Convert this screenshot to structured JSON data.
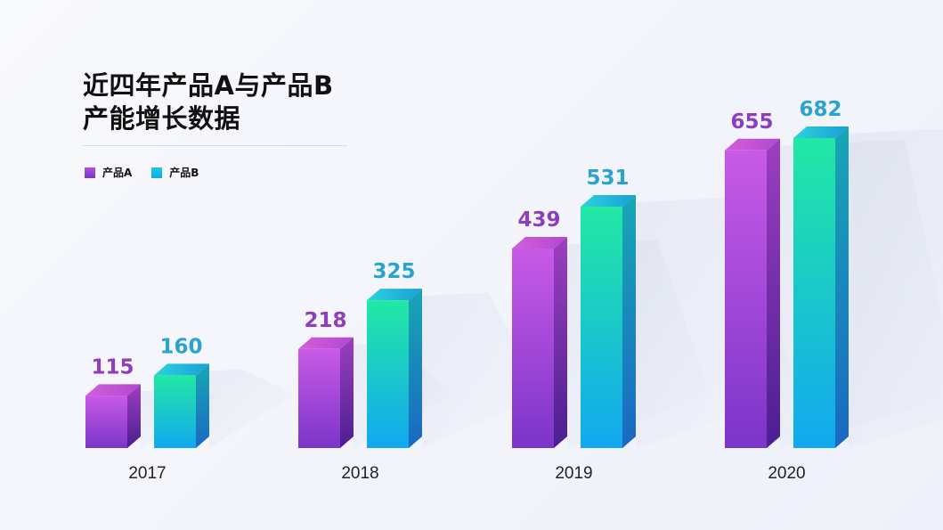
{
  "title_line1": "近四年产品A与产品B",
  "title_line2": "产能增长数据",
  "legend": [
    {
      "label": "产品A"
    },
    {
      "label": "产品B"
    }
  ],
  "colors": {
    "series_a_top": "#c85ae6",
    "series_a_bottom": "#7b35c9",
    "series_b_top": "#22e8a4",
    "series_b_bottom": "#12a8f0",
    "label_a": "#8e3ebd",
    "label_b": "#2aa3cf"
  },
  "chart_data": {
    "type": "bar",
    "categories": [
      "2017",
      "2018",
      "2019",
      "2020"
    ],
    "series": [
      {
        "name": "产品A",
        "values": [
          115,
          218,
          439,
          655
        ]
      },
      {
        "name": "产品B",
        "values": [
          160,
          325,
          531,
          682
        ]
      }
    ],
    "ylim": [
      0,
      682
    ],
    "grid": false,
    "legend_position": "top-left"
  }
}
